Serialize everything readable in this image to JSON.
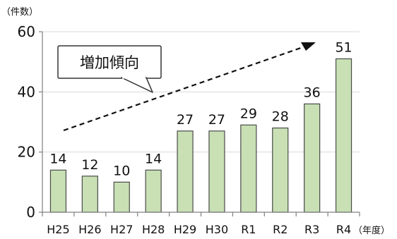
{
  "chart_data": {
    "type": "bar",
    "y_unit_label": "（件数）",
    "x_unit_label": "（年度）",
    "categories": [
      "H25",
      "H26",
      "H27",
      "H28",
      "H29",
      "H30",
      "R1",
      "R2",
      "R3",
      "R4"
    ],
    "values": [
      14,
      12,
      10,
      14,
      27,
      27,
      29,
      28,
      36,
      51
    ],
    "ylim": [
      0,
      60
    ],
    "yticks": [
      0,
      20,
      40,
      60
    ],
    "grid": true,
    "annotation": {
      "text": "増加傾向",
      "trend": "increasing",
      "arrow_style": "dashed"
    },
    "colors": {
      "bar_fill": "#c8e0b4",
      "bar_stroke": "#4a4a4a",
      "grid": "#d9d9d9"
    }
  }
}
